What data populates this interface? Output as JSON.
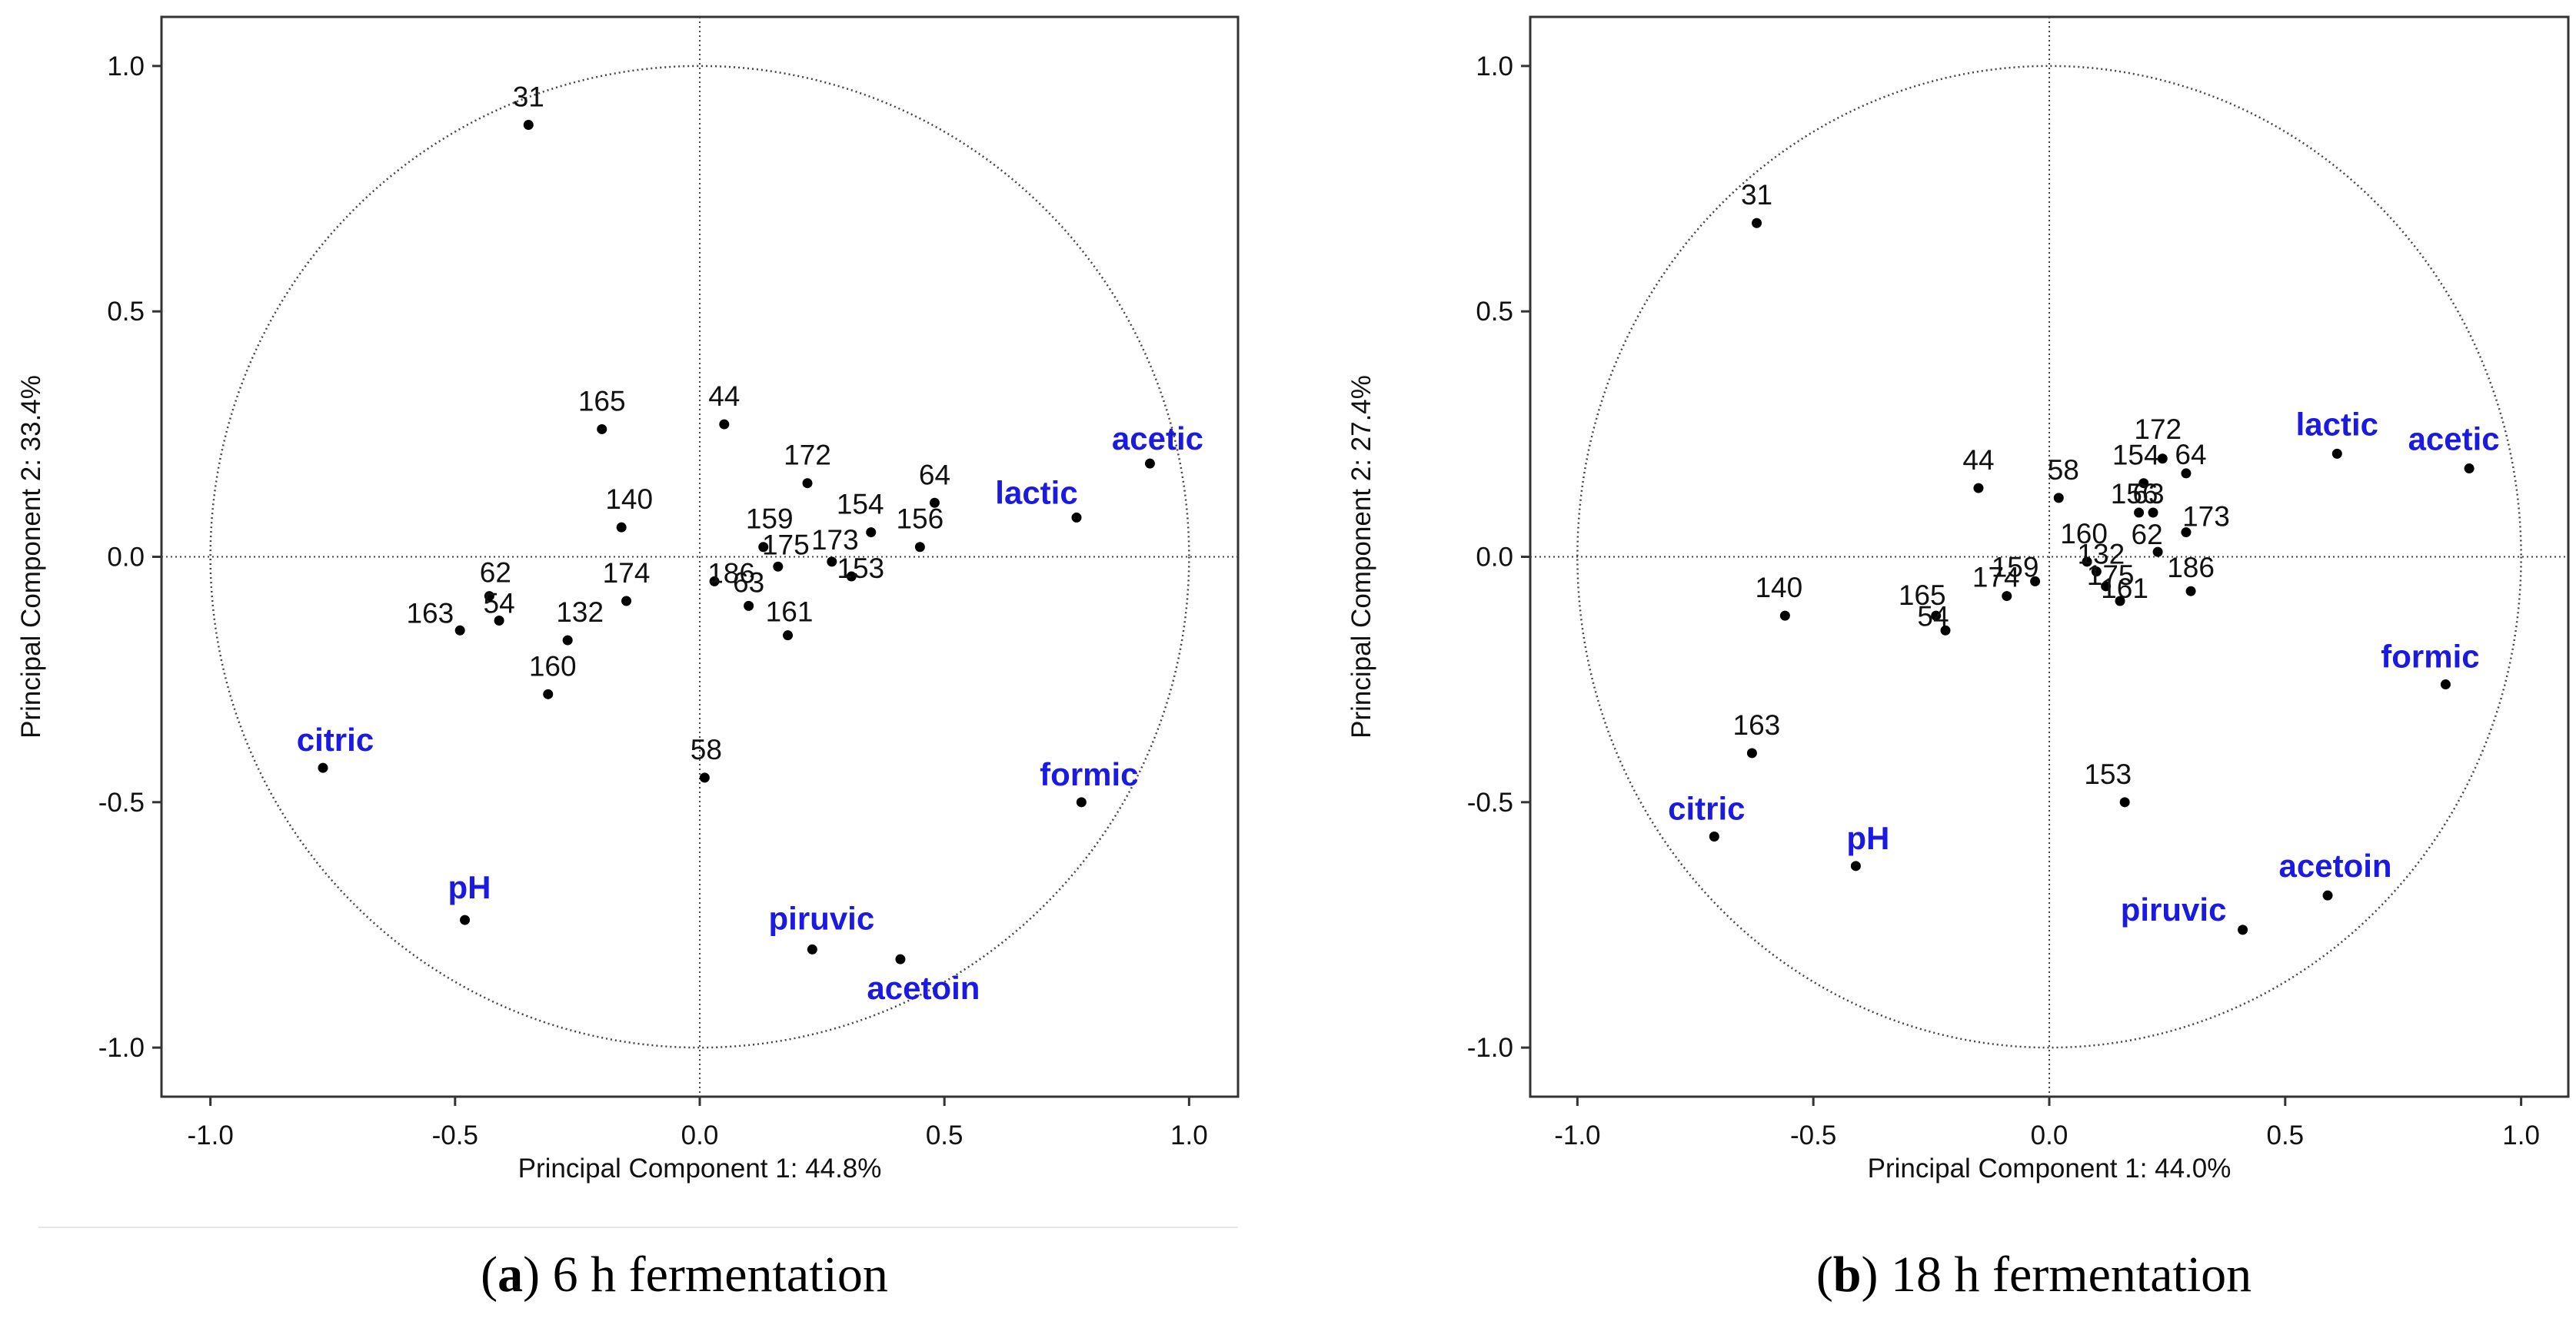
{
  "chart_data": [
    {
      "type": "scatter",
      "caption": {
        "prefix": "(",
        "letter": "a",
        "suffix": ") 6 h fermentation"
      },
      "xlabel": "Principal Component 1: 44.8%",
      "ylabel": "Principal Component 2: 33.4%",
      "xlim": [
        -1.1,
        1.1
      ],
      "ylim": [
        -1.1,
        1.1
      ],
      "xticks": [
        "-1.0",
        "-0.5",
        "0.0",
        "0.5",
        "1.0"
      ],
      "yticks": [
        "1.0",
        "0.5",
        "0.0",
        "-0.5",
        "-1.0"
      ],
      "unit_circle": true,
      "observations": [
        {
          "label": "31",
          "x": -0.35,
          "y": 0.88
        },
        {
          "label": "165",
          "x": -0.2,
          "y": 0.26
        },
        {
          "label": "44",
          "x": 0.05,
          "y": 0.27
        },
        {
          "label": "172",
          "x": 0.22,
          "y": 0.15
        },
        {
          "label": "64",
          "x": 0.48,
          "y": 0.11
        },
        {
          "label": "156",
          "x": 0.45,
          "y": 0.02
        },
        {
          "label": "154",
          "x": 0.35,
          "y": 0.05
        },
        {
          "label": "159",
          "x": 0.13,
          "y": 0.02
        },
        {
          "label": "175",
          "x": 0.16,
          "y": -0.02
        },
        {
          "label": "173",
          "x": 0.27,
          "y": -0.01
        },
        {
          "label": "153",
          "x": 0.31,
          "y": -0.04
        },
        {
          "label": "140",
          "x": -0.16,
          "y": 0.06
        },
        {
          "label": "186",
          "x": 0.03,
          "y": -0.05
        },
        {
          "label": "63",
          "x": 0.1,
          "y": -0.1
        },
        {
          "label": "161",
          "x": 0.18,
          "y": -0.16
        },
        {
          "label": "174",
          "x": -0.15,
          "y": -0.09
        },
        {
          "label": "62",
          "x": -0.43,
          "y": -0.08
        },
        {
          "label": "54",
          "x": -0.41,
          "y": -0.13
        },
        {
          "label": "163",
          "x": -0.49,
          "y": -0.15
        },
        {
          "label": "132",
          "x": -0.27,
          "y": -0.17
        },
        {
          "label": "160",
          "x": -0.31,
          "y": -0.28
        },
        {
          "label": "58",
          "x": 0.01,
          "y": -0.45
        }
      ],
      "variables": [
        {
          "label": "acetic",
          "x": 0.92,
          "y": 0.19
        },
        {
          "label": "lactic",
          "x": 0.77,
          "y": 0.08
        },
        {
          "label": "citric",
          "x": -0.77,
          "y": -0.43
        },
        {
          "label": "formic",
          "x": 0.78,
          "y": -0.5
        },
        {
          "label": "pH",
          "x": -0.48,
          "y": -0.74
        },
        {
          "label": "piruvic",
          "x": 0.23,
          "y": -0.8
        },
        {
          "label": "acetoin",
          "x": 0.41,
          "y": -0.82
        }
      ]
    },
    {
      "type": "scatter",
      "caption": {
        "prefix": "(",
        "letter": "b",
        "suffix": ") 18 h fermentation"
      },
      "xlabel": "Principal Component 1: 44.0%",
      "ylabel": "Principal Component 2: 27.4%",
      "xlim": [
        -1.1,
        1.1
      ],
      "ylim": [
        -1.1,
        1.1
      ],
      "xticks": [
        "-1.0",
        "-0.5",
        "0.0",
        "0.5",
        "1.0"
      ],
      "yticks": [
        "1.0",
        "0.5",
        "0.0",
        "-0.5",
        "-1.0"
      ],
      "unit_circle": true,
      "observations": [
        {
          "label": "31",
          "x": -0.62,
          "y": 0.68
        },
        {
          "label": "44",
          "x": -0.15,
          "y": 0.14
        },
        {
          "label": "58",
          "x": 0.02,
          "y": 0.12
        },
        {
          "label": "172",
          "x": 0.24,
          "y": 0.2
        },
        {
          "label": "154",
          "x": 0.2,
          "y": 0.15
        },
        {
          "label": "64",
          "x": 0.29,
          "y": 0.17
        },
        {
          "label": "156",
          "x": 0.19,
          "y": 0.09
        },
        {
          "label": "63",
          "x": 0.22,
          "y": 0.09
        },
        {
          "label": "173",
          "x": 0.29,
          "y": 0.05
        },
        {
          "label": "62",
          "x": 0.23,
          "y": 0.01
        },
        {
          "label": "186",
          "x": 0.3,
          "y": -0.07
        },
        {
          "label": "160",
          "x": 0.08,
          "y": -0.01
        },
        {
          "label": "132",
          "x": 0.1,
          "y": -0.03
        },
        {
          "label": "175",
          "x": 0.12,
          "y": -0.06
        },
        {
          "label": "161",
          "x": 0.15,
          "y": -0.09
        },
        {
          "label": "159",
          "x": -0.03,
          "y": -0.05
        },
        {
          "label": "174",
          "x": -0.09,
          "y": -0.08
        },
        {
          "label": "165",
          "x": -0.24,
          "y": -0.12
        },
        {
          "label": "54",
          "x": -0.22,
          "y": -0.15
        },
        {
          "label": "140",
          "x": -0.56,
          "y": -0.12
        },
        {
          "label": "163",
          "x": -0.63,
          "y": -0.4
        },
        {
          "label": "153",
          "x": 0.16,
          "y": -0.5
        }
      ],
      "variables": [
        {
          "label": "lactic",
          "x": 0.61,
          "y": 0.21
        },
        {
          "label": "acetic",
          "x": 0.89,
          "y": 0.18
        },
        {
          "label": "formic",
          "x": 0.84,
          "y": -0.26
        },
        {
          "label": "citric",
          "x": -0.71,
          "y": -0.57
        },
        {
          "label": "pH",
          "x": -0.41,
          "y": -0.63
        },
        {
          "label": "acetoin",
          "x": 0.59,
          "y": -0.69
        },
        {
          "label": "piruvic",
          "x": 0.41,
          "y": -0.76
        }
      ]
    }
  ]
}
